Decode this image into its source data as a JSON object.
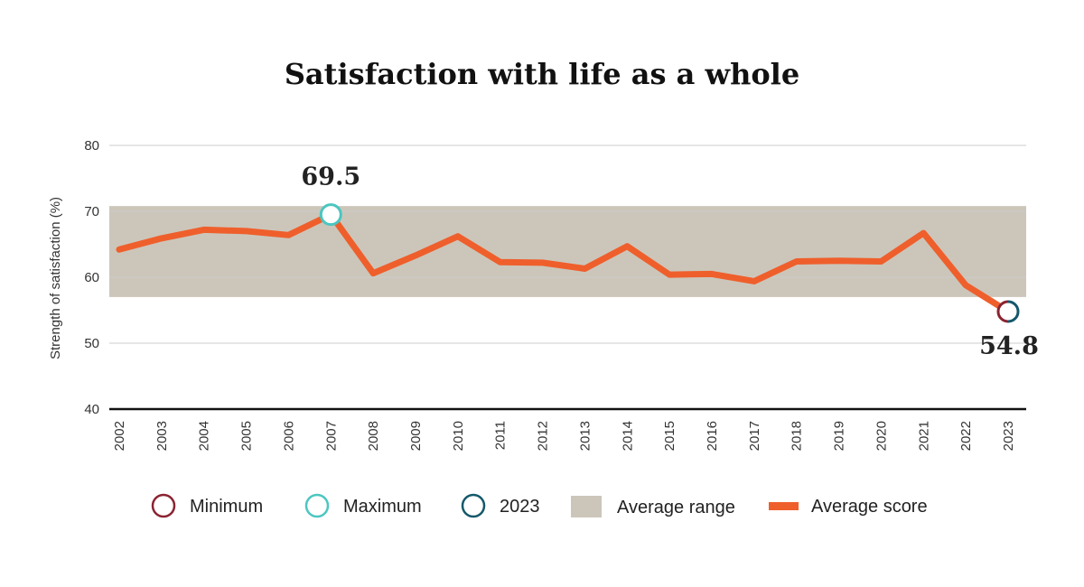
{
  "chart_data": {
    "type": "line",
    "title": "Satisfaction with life as a whole",
    "ylabel": "Strength of satisfaction (%)",
    "xlabel": "",
    "ylim": [
      40,
      80
    ],
    "yticks": [
      40,
      50,
      60,
      70,
      80
    ],
    "x": [
      "2002",
      "2003",
      "2004",
      "2005",
      "2006",
      "2007",
      "2008",
      "2009",
      "2010",
      "2011",
      "2012",
      "2013",
      "2014",
      "2015",
      "2016",
      "2017",
      "2018",
      "2019",
      "2020",
      "2021",
      "2022",
      "2023"
    ],
    "series": [
      {
        "name": "Average score",
        "values": [
          64.2,
          65.9,
          67.2,
          67.0,
          66.4,
          69.5,
          60.6,
          63.3,
          66.2,
          62.3,
          62.2,
          61.3,
          64.7,
          60.4,
          60.5,
          59.4,
          62.4,
          62.5,
          62.4,
          66.7,
          58.8,
          54.8
        ]
      }
    ],
    "average_range": [
      57.0,
      70.8
    ],
    "grid": true,
    "legend_position": "bottom",
    "annotations": [
      {
        "label": "69.5",
        "year": "2007",
        "value": 69.5,
        "marker": "maximum"
      },
      {
        "label": "54.8",
        "year": "2023",
        "value": 54.8,
        "marker": "minimum-and-2023"
      }
    ],
    "colors": {
      "line": "#ef5f2c",
      "range": "#ccc6ba",
      "minimum": "#8b2331",
      "maximum": "#4cc6c0",
      "current": "#14586b",
      "grid": "#cccccc",
      "baseline": "#111111"
    }
  },
  "legend": {
    "minimum": "Minimum",
    "maximum": "Maximum",
    "current": "2023",
    "range": "Average range",
    "score": "Average score"
  }
}
